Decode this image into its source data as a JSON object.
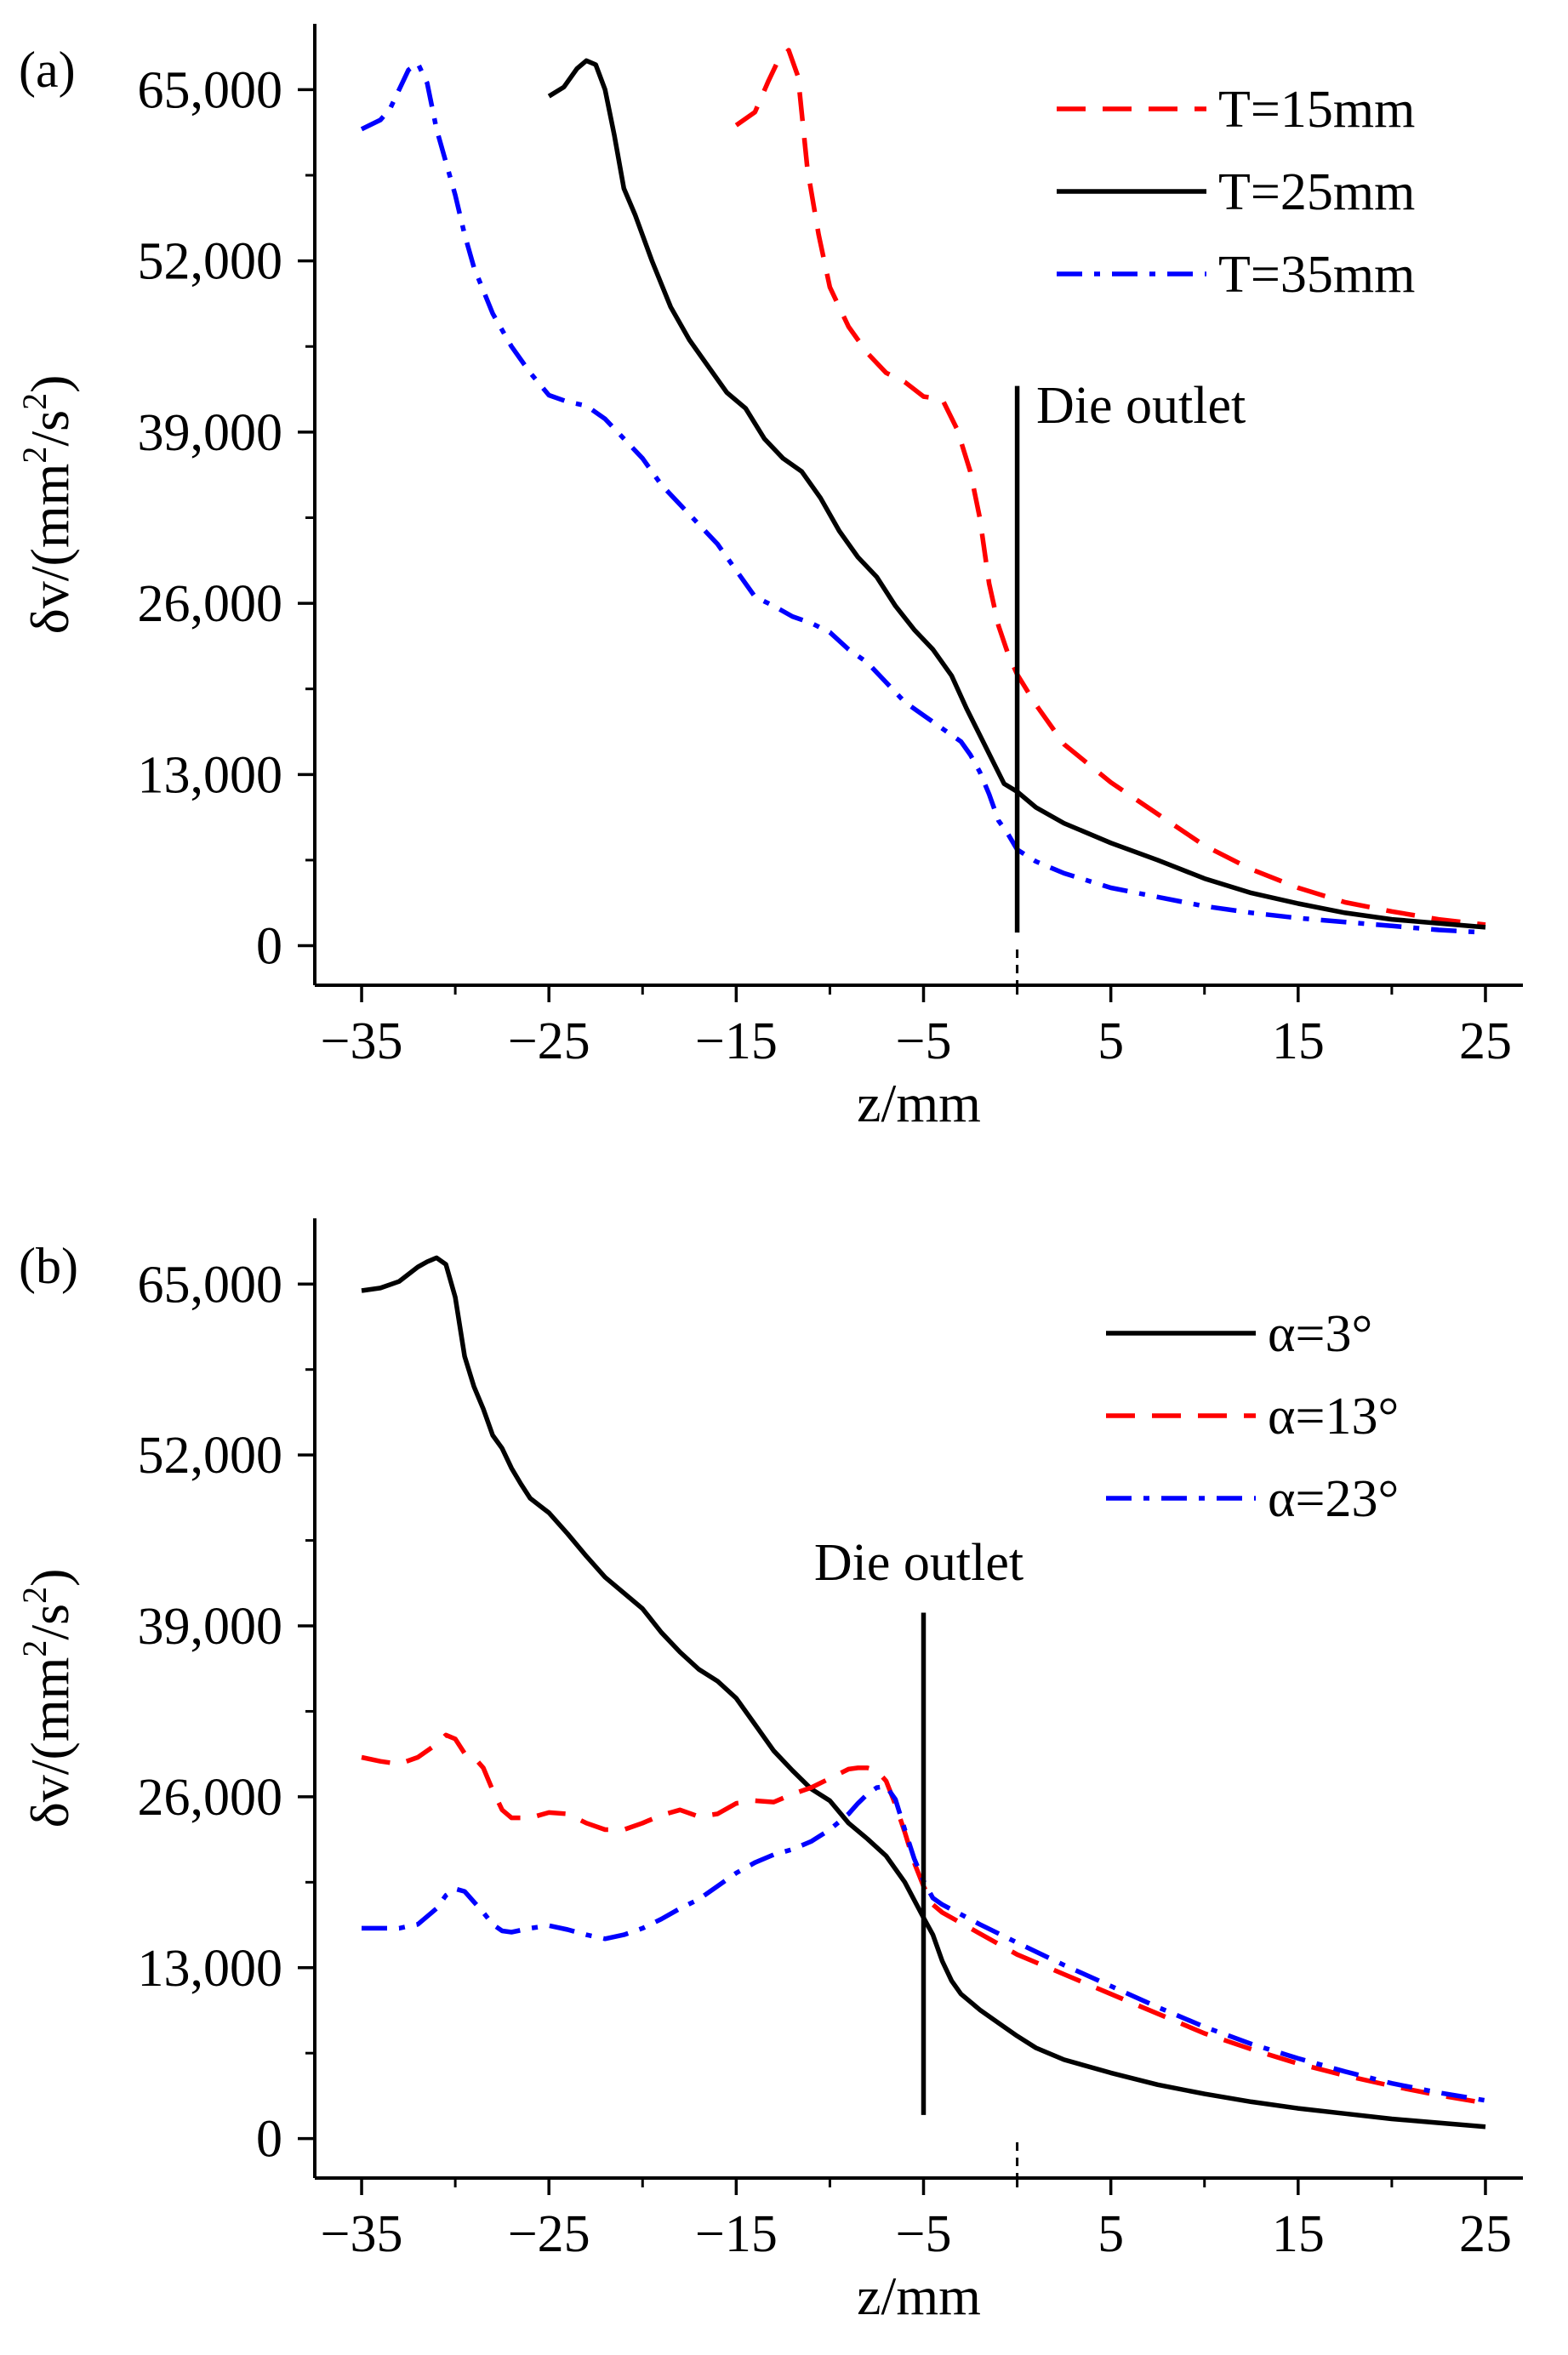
{
  "chart_data": [
    {
      "panel_label": "(a)",
      "type": "line",
      "xlabel": "z/mm",
      "ylabel": "δv/(mm²/s²)",
      "ylabel_parts": {
        "pre": "δv/(mm",
        "sup1": "2",
        "mid": "/s",
        "sup2": "2",
        "post": ")"
      },
      "xlim": [
        -37.5,
        27
      ],
      "ylim": [
        -3000,
        70000
      ],
      "xticks": [
        -35,
        -25,
        -15,
        -5,
        5,
        15,
        25
      ],
      "xtick_labels": [
        "−35",
        "−25",
        "−15",
        "−5",
        "5",
        "15",
        "25"
      ],
      "yticks": [
        0,
        13000,
        26000,
        39000,
        52000,
        65000
      ],
      "ytick_labels": [
        "0",
        "13,000",
        "26,000",
        "39,000",
        "52,000",
        "65,000"
      ],
      "die_outlet": {
        "label": "Die outlet",
        "z": 0,
        "y_top": 42500,
        "y_bottom": 1000
      },
      "dashed_ref": {
        "z": 0
      },
      "legend_position": "top-right",
      "series": [
        {
          "name": "T=15mm",
          "color": "#ff0000",
          "style": "dash",
          "x": [
            -15,
            -14,
            -13.3,
            -12.8,
            -12.2,
            -11.7,
            -11.2,
            -10.6,
            -10,
            -9,
            -8,
            -7,
            -6,
            -5,
            -4,
            -3.2,
            -2.5,
            -2,
            -1.5,
            -1,
            -0.5,
            0,
            1,
            2.5,
            5,
            7.5,
            10,
            12.5,
            15,
            17.5,
            20,
            22.5,
            25
          ],
          "y": [
            62300,
            63300,
            65600,
            67100,
            68000,
            66000,
            59000,
            54000,
            50000,
            47000,
            45000,
            43500,
            42800,
            41700,
            41500,
            39200,
            36000,
            32500,
            27500,
            24300,
            22200,
            20600,
            18300,
            15300,
            12400,
            10000,
            7600,
            5800,
            4400,
            3300,
            2600,
            2000,
            1600
          ]
        },
        {
          "name": "T=25mm",
          "color": "#000000",
          "style": "solid",
          "x": [
            -25,
            -24.2,
            -23.5,
            -23,
            -22.5,
            -22,
            -21.5,
            -21,
            -20.4,
            -19.5,
            -18.5,
            -17.5,
            -16.5,
            -15.5,
            -14.5,
            -13.5,
            -12.5,
            -11.5,
            -10.5,
            -9.5,
            -8.5,
            -7.5,
            -6.5,
            -5.5,
            -4.5,
            -3.5,
            -2.7,
            -2,
            -1.3,
            -0.7,
            0,
            1,
            2.5,
            5,
            7.5,
            10,
            12.5,
            15,
            17.5,
            20,
            22.5,
            25
          ],
          "y": [
            64500,
            65200,
            66600,
            67200,
            66900,
            65000,
            61500,
            57500,
            55500,
            52000,
            48500,
            46000,
            44000,
            42000,
            40800,
            38500,
            37000,
            36000,
            34000,
            31500,
            29500,
            28000,
            25800,
            24000,
            22500,
            20500,
            18000,
            16000,
            14000,
            12300,
            11700,
            10500,
            9300,
            7800,
            6500,
            5100,
            4000,
            3200,
            2500,
            2000,
            1700,
            1400
          ]
        },
        {
          "name": "T=35mm",
          "color": "#0000ff",
          "style": "dashdot",
          "x": [
            -35,
            -34,
            -33.5,
            -33,
            -32.5,
            -32,
            -31.5,
            -31,
            -30.5,
            -30,
            -29.5,
            -29,
            -28,
            -27,
            -26,
            -25,
            -24,
            -23,
            -22,
            -21,
            -20,
            -19,
            -18,
            -17,
            -16,
            -15,
            -14,
            -13,
            -12,
            -11,
            -10,
            -9,
            -8,
            -7,
            -6,
            -5,
            -4,
            -3,
            -2.5,
            -2,
            -1.5,
            -1,
            -0.5,
            0,
            1,
            2.5,
            5,
            7.5,
            10,
            12.5,
            15,
            17.5,
            20,
            22.5,
            25
          ],
          "y": [
            62000,
            62700,
            63500,
            65000,
            66500,
            67000,
            65500,
            62000,
            59500,
            57000,
            54000,
            51500,
            48000,
            45500,
            43500,
            41800,
            41300,
            41000,
            40000,
            38500,
            37000,
            35000,
            33500,
            32000,
            30500,
            28500,
            26500,
            25800,
            25000,
            24500,
            23800,
            22500,
            21500,
            20000,
            18500,
            17500,
            16500,
            15500,
            14500,
            13200,
            11500,
            9500,
            8500,
            7300,
            6400,
            5500,
            4400,
            3700,
            3000,
            2500,
            2100,
            1800,
            1500,
            1200,
            1000
          ]
        }
      ]
    },
    {
      "panel_label": "(b)",
      "type": "line",
      "xlabel": "z/mm",
      "ylabel": "δv/(mm²/s²)",
      "ylabel_parts": {
        "pre": "δv/(mm",
        "sup1": "2",
        "mid": "/s",
        "sup2": "2",
        "post": ")"
      },
      "xlim": [
        -37.5,
        27
      ],
      "ylim": [
        -3000,
        70000
      ],
      "xticks": [
        -35,
        -25,
        -15,
        -5,
        5,
        15,
        25
      ],
      "xtick_labels": [
        "−35",
        "−25",
        "−15",
        "−5",
        "5",
        "15",
        "25"
      ],
      "yticks": [
        0,
        13000,
        26000,
        39000,
        52000,
        65000
      ],
      "ytick_labels": [
        "0",
        "13,000",
        "26,000",
        "39,000",
        "52,000",
        "65,000"
      ],
      "die_outlet": {
        "label": "Die outlet",
        "z": -5,
        "y_top": 40000,
        "y_bottom": 1800
      },
      "dashed_ref": {
        "z": 0
      },
      "legend_position": "top-right",
      "series": [
        {
          "name": "α=3°",
          "color": "#000000",
          "style": "solid",
          "x": [
            -35,
            -34,
            -33,
            -32,
            -31.5,
            -31,
            -30.5,
            -30,
            -29.5,
            -29,
            -28.5,
            -28,
            -27.5,
            -27,
            -26.5,
            -26,
            -25,
            -24,
            -23,
            -22,
            -21,
            -20,
            -19,
            -18,
            -17,
            -16,
            -15,
            -14,
            -13,
            -12,
            -11,
            -10,
            -9,
            -8,
            -7,
            -6,
            -5,
            -4.5,
            -4,
            -3.5,
            -3,
            -2,
            -1,
            0,
            1,
            2.5,
            5,
            7.5,
            10,
            12.5,
            15,
            17.5,
            20,
            22.5,
            25
          ],
          "y": [
            64500,
            64700,
            65200,
            66300,
            66700,
            67000,
            66500,
            64000,
            59500,
            57200,
            55500,
            53500,
            52500,
            51000,
            49800,
            48700,
            47600,
            46000,
            44300,
            42700,
            41500,
            40300,
            38500,
            37000,
            35700,
            34800,
            33500,
            31500,
            29500,
            28000,
            26600,
            25700,
            24000,
            22800,
            21500,
            19500,
            16800,
            15500,
            13500,
            12000,
            11000,
            9800,
            8800,
            7800,
            6900,
            6000,
            5000,
            4100,
            3400,
            2800,
            2300,
            1900,
            1500,
            1200,
            900
          ]
        },
        {
          "name": "α=13°",
          "color": "#ff0000",
          "style": "dash",
          "x": [
            -35,
            -34,
            -33,
            -32,
            -31,
            -30.5,
            -30,
            -29.5,
            -29,
            -28.5,
            -28,
            -27.5,
            -27,
            -26,
            -25,
            -24,
            -23,
            -22,
            -21,
            -20,
            -19,
            -18,
            -17,
            -16,
            -15,
            -14,
            -13,
            -12,
            -11,
            -10,
            -9,
            -8.5,
            -8,
            -7.5,
            -7,
            -6.5,
            -6,
            -5.5,
            -5,
            -4.5,
            -4,
            -2,
            0,
            2.5,
            5,
            7.5,
            10,
            12.5,
            15,
            17.5,
            20,
            22.5,
            25
          ],
          "y": [
            29000,
            28700,
            28500,
            29000,
            30000,
            30700,
            30400,
            29300,
            29000,
            28200,
            26500,
            25000,
            24400,
            24400,
            24800,
            24700,
            24000,
            23500,
            23500,
            24000,
            24600,
            25000,
            24500,
            24700,
            25500,
            25700,
            25600,
            26200,
            26700,
            27400,
            28100,
            28200,
            28200,
            28000,
            27200,
            25400,
            23300,
            21000,
            19200,
            17800,
            17200,
            15600,
            14000,
            12500,
            11000,
            9500,
            8000,
            6800,
            5700,
            4800,
            4000,
            3300,
            2700
          ]
        },
        {
          "name": "α=23°",
          "color": "#0000ff",
          "style": "dashdot",
          "x": [
            -35,
            -34,
            -33,
            -32,
            -31,
            -30.5,
            -30,
            -29.5,
            -29,
            -28.5,
            -28,
            -27.5,
            -27,
            -26,
            -25,
            -24,
            -23,
            -22,
            -21,
            -20,
            -19,
            -18,
            -17,
            -16,
            -15,
            -14,
            -13,
            -12,
            -11,
            -10,
            -9,
            -8.5,
            -8,
            -7.5,
            -7,
            -6.5,
            -6,
            -5.5,
            -5,
            -4.5,
            -4,
            -2,
            0,
            2.5,
            5,
            7.5,
            10,
            12.5,
            15,
            17.5,
            20,
            22.5,
            25
          ],
          "y": [
            16000,
            16000,
            16000,
            16300,
            17500,
            18500,
            19000,
            18800,
            18000,
            17200,
            16300,
            15800,
            15700,
            16000,
            16200,
            15900,
            15500,
            15200,
            15500,
            16000,
            16700,
            17500,
            18200,
            19200,
            20200,
            21000,
            21600,
            22000,
            22600,
            23500,
            24700,
            25500,
            26200,
            26700,
            26800,
            25800,
            23500,
            21300,
            19600,
            18300,
            17800,
            16300,
            14900,
            13200,
            11600,
            10000,
            8500,
            7200,
            6100,
            5100,
            4200,
            3500,
            2900
          ]
        }
      ]
    }
  ]
}
